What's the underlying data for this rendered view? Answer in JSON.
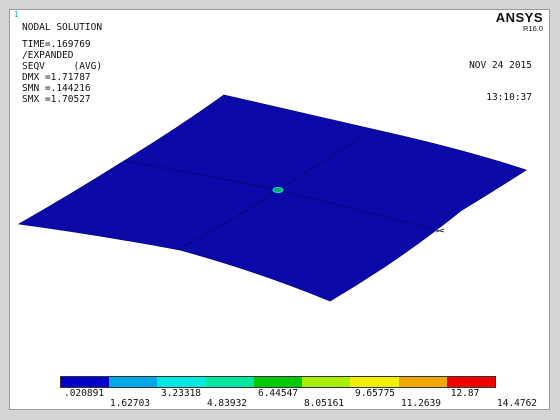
{
  "window": {
    "number": "1"
  },
  "logo": {
    "brand": "ANSYS",
    "release": "R16.0"
  },
  "info": {
    "title": "NODAL SOLUTION",
    "time": "TIME=.169769",
    "view": "/EXPANDED",
    "result": "SEQV     (AVG)",
    "dmx": "DMX =1.71787",
    "smn": "SMN =.144216",
    "smx": "SMX =1.70527"
  },
  "datetime": {
    "date": "NOV 24 2015",
    "time": "13:10:37"
  },
  "colors": {
    "plate": "#0b0aa8",
    "plate_edge": "#050560",
    "background": "#ffffff"
  },
  "legend": {
    "swatches": [
      "#0000c8",
      "#00a8e8",
      "#00e8e0",
      "#00e8a0",
      "#00c800",
      "#a8f000",
      "#f0f000",
      "#f0a800",
      "#f00000"
    ],
    "labels_top": [
      ".020891",
      "3.23318",
      "6.44547",
      "9.65775",
      "12.87"
    ],
    "labels_bottom": [
      "1.62703",
      "4.83932",
      "8.05161",
      "11.2639",
      "14.4762"
    ]
  }
}
